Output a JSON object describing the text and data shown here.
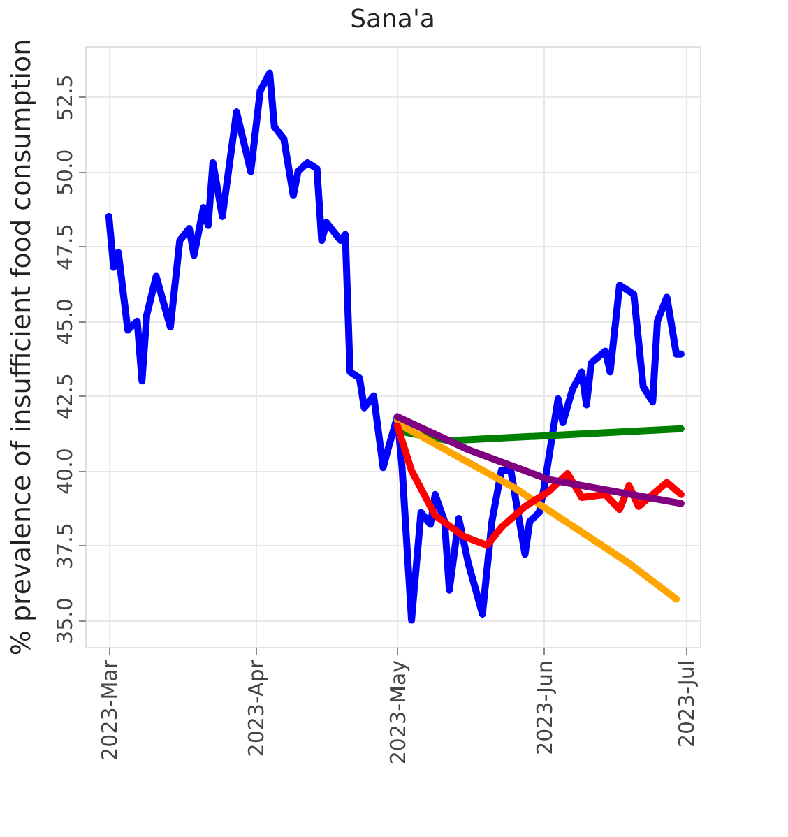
{
  "chart_data": {
    "type": "line",
    "title": "Sana'a",
    "ylabel": "% prevalence of insufficient food consumption",
    "xlim": [
      "2023-02-24",
      "2023-07-04"
    ],
    "ylim": [
      34.1,
      54.2
    ],
    "xticks": [
      {
        "value": "2023-03-01",
        "label": "2023-Mar"
      },
      {
        "value": "2023-04-01",
        "label": "2023-Apr"
      },
      {
        "value": "2023-05-01",
        "label": "2023-May"
      },
      {
        "value": "2023-06-01",
        "label": "2023-Jun"
      },
      {
        "value": "2023-07-01",
        "label": "2023-Jul"
      }
    ],
    "yticks": [
      {
        "value": 35,
        "label": "35.0"
      },
      37.5,
      {
        "value": 40,
        "label": "40.0"
      },
      42.5,
      {
        "value": 45,
        "label": "45.0"
      },
      47.5,
      {
        "value": 50,
        "label": "50.0"
      },
      52.5
    ],
    "grid": true,
    "legend": false,
    "marker": "none",
    "line_style": "solid",
    "series": [
      {
        "color": "#0000ff",
        "x": [
          "2023-03-01",
          "2023-03-02",
          "2023-03-03",
          "2023-03-05",
          "2023-03-07",
          "2023-03-08",
          "2023-03-09",
          "2023-03-11",
          "2023-03-14",
          "2023-03-16",
          "2023-03-18",
          "2023-03-19",
          "2023-03-21",
          "2023-03-22",
          "2023-03-23",
          "2023-03-25",
          "2023-03-28",
          "2023-03-31",
          "2023-04-02",
          "2023-04-04",
          "2023-04-05",
          "2023-04-07",
          "2023-04-09",
          "2023-04-10",
          "2023-04-12",
          "2023-04-14",
          "2023-04-15",
          "2023-04-16",
          "2023-04-19",
          "2023-04-20",
          "2023-04-21",
          "2023-04-23",
          "2023-04-24",
          "2023-04-26",
          "2023-04-28",
          "2023-04-29",
          "2023-05-01",
          "2023-05-02",
          "2023-05-04",
          "2023-05-06",
          "2023-05-08",
          "2023-05-09",
          "2023-05-11",
          "2023-05-12",
          "2023-05-14",
          "2023-05-16",
          "2023-05-19",
          "2023-05-21",
          "2023-05-23",
          "2023-05-25",
          "2023-05-28",
          "2023-05-29",
          "2023-05-31",
          "2023-06-01",
          "2023-06-04",
          "2023-06-05",
          "2023-06-07",
          "2023-06-09",
          "2023-06-10",
          "2023-06-11",
          "2023-06-14",
          "2023-06-15",
          "2023-06-17",
          "2023-06-19",
          "2023-06-20",
          "2023-06-22",
          "2023-06-24",
          "2023-06-25",
          "2023-06-27",
          "2023-06-29",
          "2023-06-30"
        ],
        "values": [
          48.5,
          46.8,
          47.3,
          44.7,
          45.0,
          43.0,
          45.2,
          46.5,
          44.8,
          47.7,
          48.1,
          47.2,
          48.8,
          48.2,
          50.3,
          48.5,
          52.0,
          50.0,
          52.7,
          53.3,
          51.5,
          51.1,
          49.2,
          50.0,
          50.3,
          50.1,
          47.7,
          48.3,
          47.7,
          47.9,
          43.3,
          43.1,
          42.1,
          42.5,
          40.1,
          40.7,
          41.8,
          40.1,
          35.0,
          38.6,
          38.2,
          39.2,
          38.3,
          36.0,
          38.4,
          36.9,
          35.2,
          38.3,
          40.0,
          40.0,
          37.2,
          38.3,
          38.6,
          39.4,
          42.4,
          41.6,
          42.7,
          43.3,
          42.2,
          43.6,
          44.0,
          43.3,
          46.2,
          46.0,
          45.9,
          42.8,
          42.3,
          45.0,
          45.8,
          43.9,
          43.9
        ]
      },
      {
        "color": "#008000",
        "x": [
          "2023-05-01",
          "2023-05-02",
          "2023-05-12",
          "2023-06-30"
        ],
        "values": [
          41.7,
          41.3,
          41.0,
          41.4
        ]
      },
      {
        "color": "#ffa500",
        "x": [
          "2023-05-01",
          "2023-05-02",
          "2023-05-26",
          "2023-06-19",
          "2023-06-29"
        ],
        "values": [
          41.7,
          41.5,
          39.4,
          36.9,
          35.7
        ]
      },
      {
        "color": "#ff0000",
        "x": [
          "2023-05-01",
          "2023-05-04",
          "2023-05-09",
          "2023-05-15",
          "2023-05-20",
          "2023-05-23",
          "2023-05-28",
          "2023-06-02",
          "2023-06-06",
          "2023-06-09",
          "2023-06-14",
          "2023-06-17",
          "2023-06-19",
          "2023-06-21",
          "2023-06-27",
          "2023-06-30"
        ],
        "values": [
          41.5,
          40.0,
          38.5,
          37.8,
          37.5,
          38.1,
          38.8,
          39.3,
          39.9,
          39.1,
          39.2,
          38.7,
          39.5,
          38.8,
          39.6,
          39.2
        ]
      },
      {
        "color": "#800080",
        "x": [
          "2023-05-01",
          "2023-05-16",
          "2023-06-02",
          "2023-06-30"
        ],
        "values": [
          41.8,
          40.7,
          39.7,
          38.9
        ]
      }
    ]
  }
}
